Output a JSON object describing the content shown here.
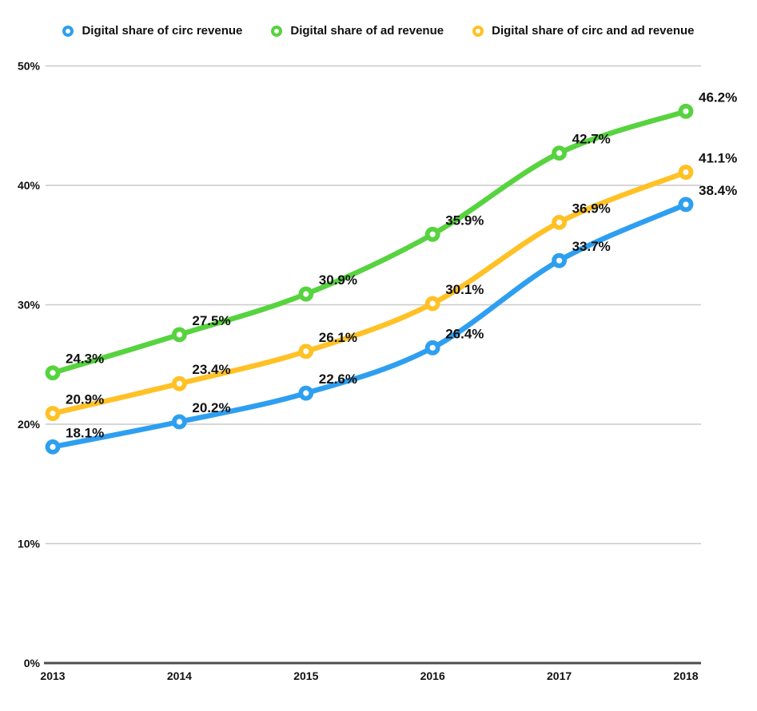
{
  "chart_data": {
    "type": "line",
    "title": "",
    "xlabel": "",
    "ylabel": "",
    "x": [
      "2013",
      "2014",
      "2015",
      "2016",
      "2017",
      "2018"
    ],
    "series": [
      {
        "name": "Digital share of circ revenue",
        "color": "#2E9FF0",
        "values": [
          18.1,
          20.2,
          22.6,
          26.4,
          33.7,
          38.4
        ],
        "labels": [
          "18.1%",
          "20.2%",
          "22.6%",
          "26.4%",
          "33.7%",
          "38.4%"
        ]
      },
      {
        "name": "Digital share of ad revenue",
        "color": "#57D33F",
        "values": [
          24.3,
          27.5,
          30.9,
          35.9,
          42.7,
          46.2
        ],
        "labels": [
          "24.3%",
          "27.5%",
          "30.9%",
          "35.9%",
          "42.7%",
          "46.2%"
        ]
      },
      {
        "name": "Digital share of circ and ad revenue",
        "color": "#FFC125",
        "values": [
          20.9,
          23.4,
          26.1,
          30.1,
          36.9,
          41.1
        ],
        "labels": [
          "20.9%",
          "23.4%",
          "26.1%",
          "30.1%",
          "36.9%",
          "41.1%"
        ]
      }
    ],
    "ylim": [
      0,
      50
    ],
    "yticks": [
      0,
      10,
      20,
      30,
      40,
      50
    ],
    "ytick_labels": [
      "0%",
      "10%",
      "20%",
      "30%",
      "40%",
      "50%"
    ],
    "grid": true,
    "legend_position": "top",
    "data_labels_shown": true
  },
  "styles": {
    "background": "#FFFFFF",
    "grid_color": "#C9C9C9",
    "axis_color": "#4D4D4D",
    "text_color": "#111111"
  }
}
